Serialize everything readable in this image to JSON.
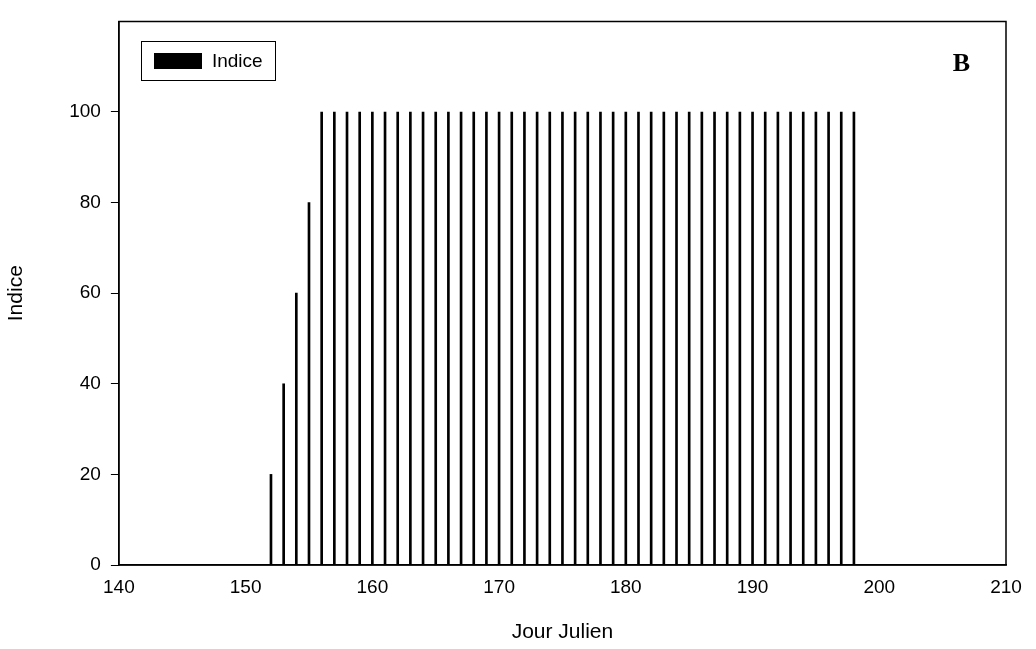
{
  "chart_data": {
    "type": "bar",
    "xlabel": "Jour Julien",
    "ylabel": "Indice",
    "x": [
      152,
      153,
      154,
      155,
      156,
      157,
      158,
      159,
      160,
      161,
      162,
      163,
      164,
      165,
      166,
      167,
      168,
      169,
      170,
      171,
      172,
      173,
      174,
      175,
      176,
      177,
      178,
      179,
      180,
      181,
      182,
      183,
      184,
      185,
      186,
      187,
      188,
      189,
      190,
      191,
      192,
      193,
      194,
      195,
      196,
      197,
      198
    ],
    "series": [
      {
        "name": "Indice",
        "color": "#000000",
        "values": [
          20,
          40,
          60,
          80,
          100,
          100,
          100,
          100,
          100,
          100,
          100,
          100,
          100,
          100,
          100,
          100,
          100,
          100,
          100,
          100,
          100,
          100,
          100,
          100,
          100,
          100,
          100,
          100,
          100,
          100,
          100,
          100,
          100,
          100,
          100,
          100,
          100,
          100,
          100,
          100,
          100,
          100,
          100,
          100,
          100,
          100,
          100
        ]
      }
    ],
    "xlim": [
      140,
      210
    ],
    "xticks": [
      140,
      150,
      160,
      170,
      180,
      190,
      200,
      210
    ],
    "ylim": [
      0,
      120
    ],
    "yticks": [
      0,
      20,
      40,
      60,
      80,
      100
    ],
    "annotations": [
      "B"
    ],
    "legend": "top left",
    "grid": false
  }
}
